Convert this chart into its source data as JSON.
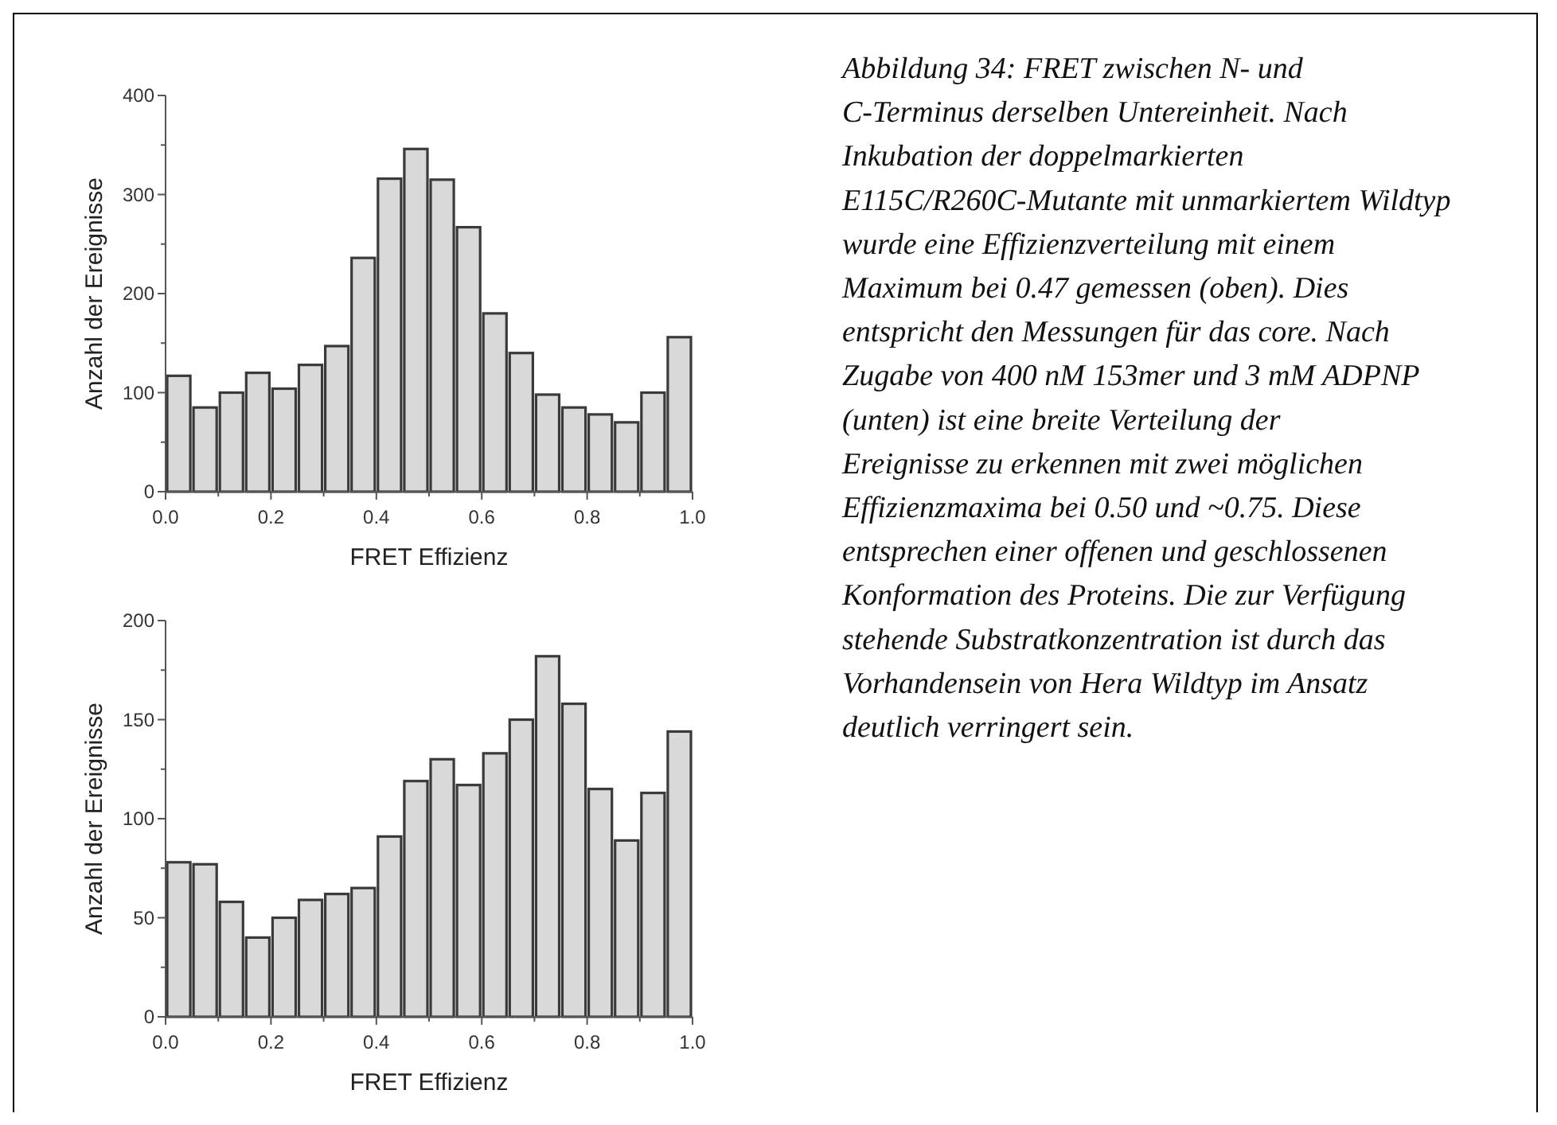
{
  "chart_data": [
    {
      "type": "histogram",
      "xlabel": "FRET Effizienz",
      "ylabel": "Anzahl der Ereignisse",
      "color": "#d9d9d9",
      "bins": [
        0,
        0.05,
        0.1,
        0.15,
        0.2,
        0.25,
        0.3,
        0.35,
        0.4,
        0.45,
        0.5,
        0.55,
        0.6,
        0.65,
        0.7,
        0.75,
        0.8,
        0.85,
        0.9,
        0.95,
        1.0
      ],
      "values": [
        117,
        85,
        100,
        120,
        104,
        128,
        147,
        236,
        316,
        346,
        315,
        267,
        180,
        140,
        98,
        85,
        78,
        70,
        100,
        156
      ],
      "xlim": [
        0,
        1.0
      ],
      "xticks": [
        {
          "value": 0,
          "label": "0.0"
        },
        {
          "value": 0.1,
          "label": null
        },
        {
          "value": 0.2,
          "label": "0.2"
        },
        {
          "value": 0.3,
          "label": null
        },
        {
          "value": 0.4,
          "label": "0.4"
        },
        {
          "value": 0.5,
          "label": null
        },
        {
          "value": 0.6,
          "label": "0.6"
        },
        {
          "value": 0.7,
          "label": null
        },
        {
          "value": 0.8,
          "label": "0.8"
        },
        {
          "value": 0.9,
          "label": null
        },
        {
          "value": 1.0,
          "label": "1.0"
        }
      ],
      "ylim": [
        0,
        400
      ],
      "yticks": [
        0,
        {
          "value": 50,
          "label": null
        },
        100,
        {
          "value": 150,
          "label": null
        },
        200,
        {
          "value": 250,
          "label": null
        },
        300,
        {
          "value": 350,
          "label": null
        },
        400
      ]
    },
    {
      "type": "histogram",
      "xlabel": "FRET Effizienz",
      "ylabel": "Anzahl der Ereignisse",
      "color": "#d9d9d9",
      "bins": [
        0,
        0.05,
        0.1,
        0.15,
        0.2,
        0.25,
        0.3,
        0.35,
        0.4,
        0.45,
        0.5,
        0.55,
        0.6,
        0.65,
        0.7,
        0.75,
        0.8,
        0.85,
        0.9,
        0.95,
        1.0
      ],
      "values": [
        78,
        77,
        58,
        40,
        50,
        59,
        62,
        65,
        91,
        119,
        130,
        117,
        133,
        150,
        182,
        158,
        115,
        89,
        113,
        144
      ],
      "xlim": [
        0,
        1.0
      ],
      "xticks": [
        {
          "value": 0,
          "label": "0.0"
        },
        {
          "value": 0.1,
          "label": null
        },
        {
          "value": 0.2,
          "label": "0.2"
        },
        {
          "value": 0.3,
          "label": null
        },
        {
          "value": 0.4,
          "label": "0.4"
        },
        {
          "value": 0.5,
          "label": null
        },
        {
          "value": 0.6,
          "label": "0.6"
        },
        {
          "value": 0.7,
          "label": null
        },
        {
          "value": 0.8,
          "label": "0.8"
        },
        {
          "value": 0.9,
          "label": null
        },
        {
          "value": 1.0,
          "label": "1.0"
        }
      ],
      "ylim": [
        0,
        200
      ],
      "yticks": [
        0,
        {
          "value": 25,
          "label": null
        },
        50,
        {
          "value": 75,
          "label": null
        },
        100,
        {
          "value": 125,
          "label": null
        },
        150,
        {
          "value": 175,
          "label": null
        },
        200
      ]
    },
    {
      "type": "other",
      "annotations": [
        "Abbildung 34: FRET zwischen N- und C-Terminus derselben Untereinheit. Nach Inkubation der doppelmarkierten E115C/R260C-Mutante mit unmarkiertem Wildtyp wurde eine Effizienzverteilung mit einem Maximum bei 0.47 gemessen (oben). Dies entspricht den Messungen für das core. Nach Zugabe von 400 nM 153mer und 3 mM ADPNP (unten) ist eine breite Verteilung der Ereignisse zu erkennen mit zwei möglichen Effizienzmaxima bei 0.50 und ~0.75. Diese entsprechen einer offenen und geschlossenen Konformation des Proteins. Die zur Verfügung stehende Substratkonzentration ist durch das Vorhandensein von Hera Wildtyp im Ansatz deutlich verringert sein."
      ]
    }
  ]
}
